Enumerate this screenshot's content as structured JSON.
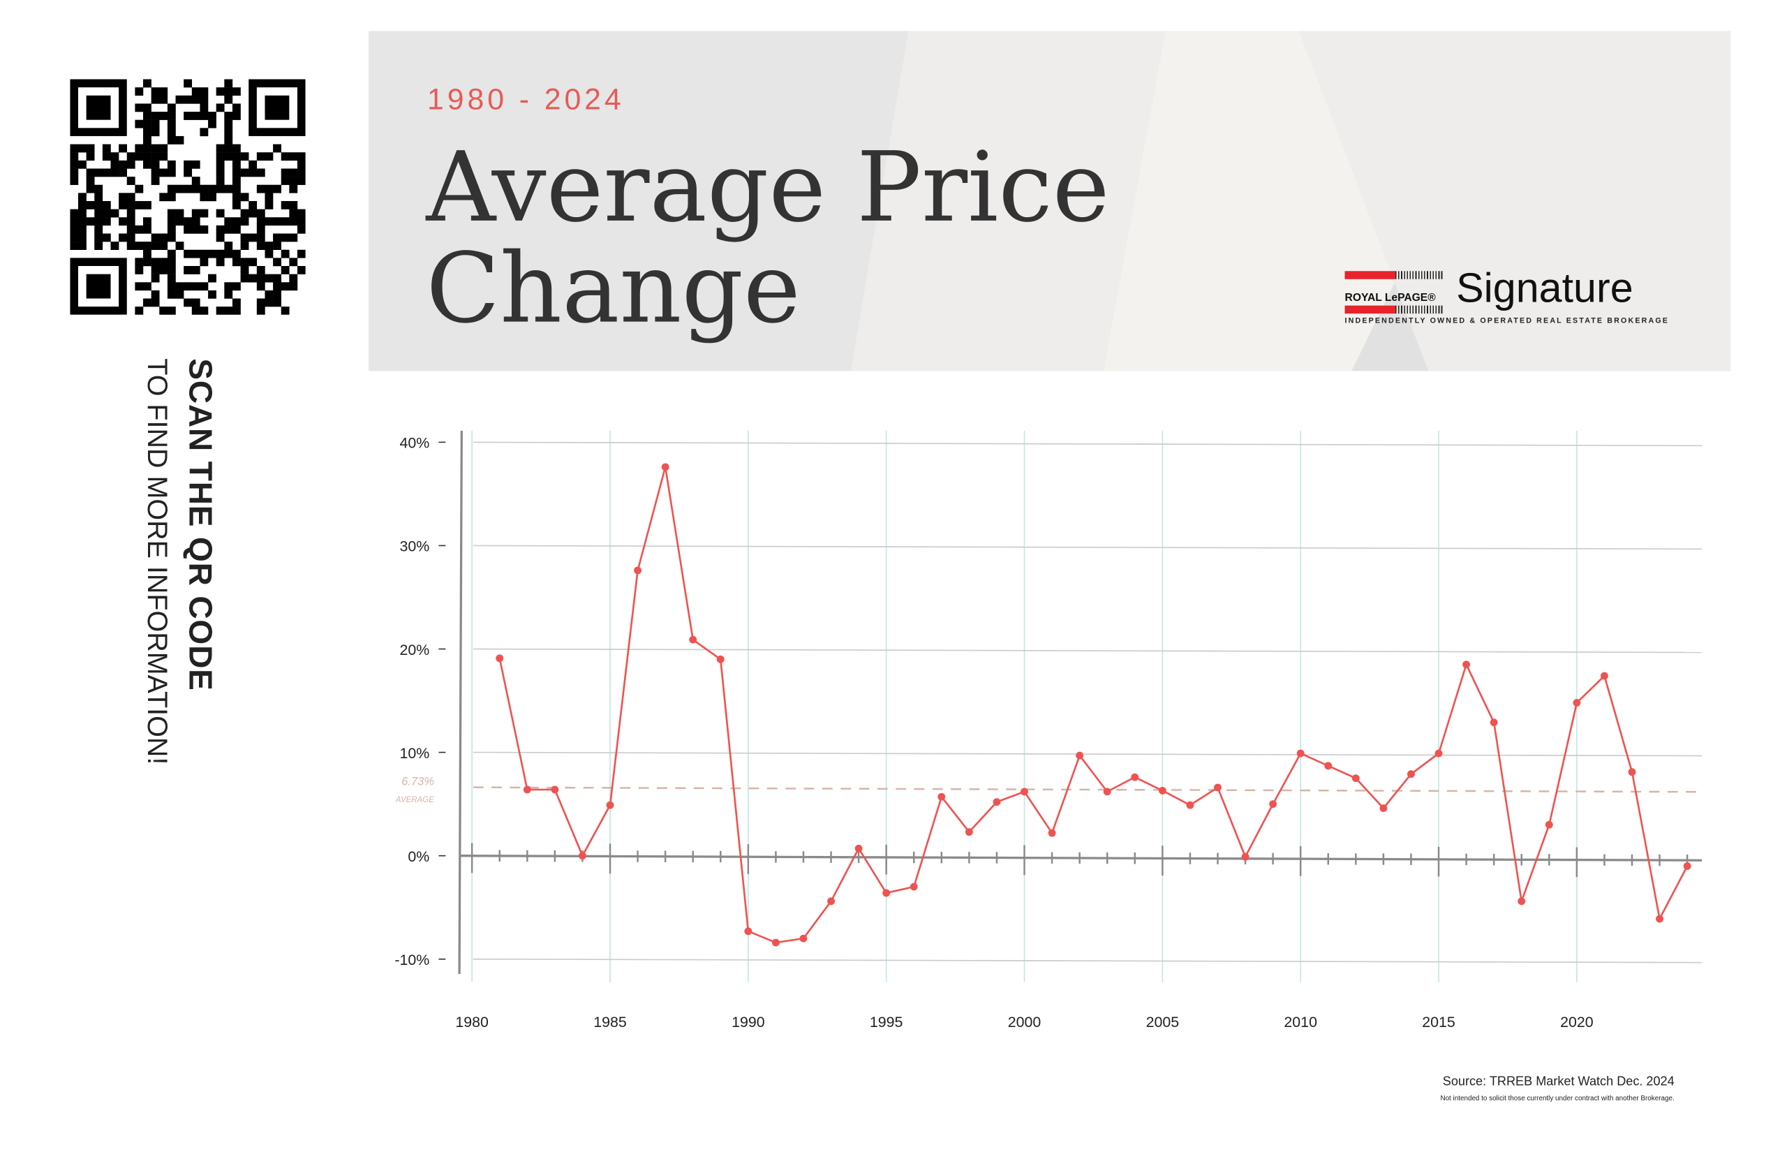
{
  "qr": {
    "label": "QR code"
  },
  "scan": {
    "line1": "SCAN THE QR CODE",
    "line2": "TO FIND MORE INFORMATION!"
  },
  "header": {
    "years": "1980 - 2024",
    "title_line1": "Average Price",
    "title_line2": "Change"
  },
  "logo": {
    "brand": "ROYAL LePAGE®",
    "name": "Signature",
    "tagline": "INDEPENDENTLY OWNED & OPERATED REAL ESTATE BROKERAGE"
  },
  "footer": {
    "source": "Source: TRREB Market Watch Dec. 2024",
    "disclaimer": "Not intended to solicit those currently under contract with another Brokerage."
  },
  "colors": {
    "line": "#ef5350",
    "average": "#d4b5a8",
    "grid": "#c8cccc",
    "vgrid": "#c6e6e2",
    "axis": "#8a8a8a"
  },
  "chart_data": {
    "type": "line",
    "title": "Average Price Change",
    "xlabel": "",
    "ylabel": "",
    "xlim": [
      1980,
      2024
    ],
    "ylim": [
      -10,
      40
    ],
    "x_ticks": [
      1980,
      1985,
      1990,
      1995,
      2000,
      2005,
      2010,
      2015,
      2020
    ],
    "y_ticks": [
      {
        "v": 40,
        "label": "40%"
      },
      {
        "v": 30,
        "label": "30%"
      },
      {
        "v": 20,
        "label": "20%"
      },
      {
        "v": 10,
        "label": "10%"
      },
      {
        "v": 0,
        "label": "0%"
      },
      {
        "v": -10,
        "label": "-10%"
      }
    ],
    "average": {
      "value": 6.73,
      "label": "6.73%",
      "sublabel": "AVERAGE"
    },
    "grid": true,
    "series": [
      {
        "name": "Average Price Change",
        "x": [
          1981,
          1982,
          1983,
          1984,
          1985,
          1986,
          1987,
          1988,
          1989,
          1990,
          1991,
          1992,
          1993,
          1994,
          1995,
          1996,
          1997,
          1998,
          1999,
          2000,
          2001,
          2002,
          2003,
          2004,
          2005,
          2006,
          2007,
          2008,
          2009,
          2010,
          2011,
          2012,
          2013,
          2014,
          2015,
          2016,
          2017,
          2018,
          2019,
          2020,
          2021,
          2022,
          2023,
          2024
        ],
        "values": [
          19.1,
          6.4,
          6.4,
          0.0,
          4.9,
          27.6,
          37.6,
          20.9,
          19.0,
          -7.3,
          -8.4,
          -8.0,
          -4.4,
          0.7,
          -3.6,
          -3.0,
          5.7,
          2.3,
          5.2,
          6.2,
          2.2,
          9.7,
          6.2,
          7.6,
          6.3,
          4.9,
          6.6,
          -0.1,
          5.0,
          9.9,
          8.7,
          7.5,
          4.6,
          7.9,
          9.9,
          18.5,
          12.9,
          -4.4,
          3.0,
          14.8,
          17.4,
          8.1,
          -6.1,
          -1.0
        ]
      }
    ]
  }
}
